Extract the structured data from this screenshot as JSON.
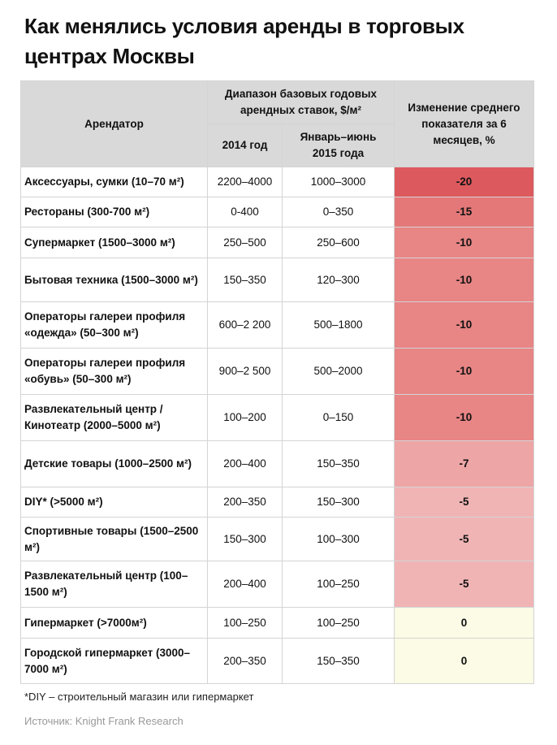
{
  "title": "Как менялись условия аренды в торговых центрах Москвы",
  "table": {
    "headers": {
      "tenant": "Арендатор",
      "range": "Диапазон базовых годовых арендных ставок, $/м²",
      "y2014": "2014 год",
      "y2015": "Январь–июнь 2015 года",
      "change": "Изменение среднего показателя за 6 месяцев, %"
    },
    "rows": [
      {
        "tenant": "Аксессуары, сумки (10–70 м²)",
        "y2014": "2200–4000",
        "y2015": "1000–3000",
        "change": "-20",
        "color": "#dc5a5e"
      },
      {
        "tenant": "Рестораны (300-700 м²)",
        "y2014": "0-400",
        "y2015": "0–350",
        "change": "-15",
        "color": "#e47878"
      },
      {
        "tenant": "Супермаркет (1500–3000 м²)",
        "y2014": "250–500",
        "y2015": "250–600",
        "change": "-10",
        "color": "#e88585"
      },
      {
        "tenant": "Бытовая техника (1500–3000 м²)",
        "y2014": "150–350",
        "y2015": "120–300",
        "change": "-10",
        "color": "#e88585"
      },
      {
        "tenant": "Операторы галереи профиля «одежда» (50–300 м²)",
        "y2014": "600–2 200",
        "y2015": "500–1800",
        "change": "-10",
        "color": "#e88585"
      },
      {
        "tenant": "Операторы галереи профиля «обувь» (50–300 м²)",
        "y2014": "900–2 500",
        "y2015": "500–2000",
        "change": "-10",
        "color": "#e88585"
      },
      {
        "tenant": "Развлекательный центр / Кинотеатр (2000–5000 м²)",
        "y2014": "100–200",
        "y2015": "0–150",
        "change": "-10",
        "color": "#e88585"
      },
      {
        "tenant": "Детские товары (1000–2500 м²)",
        "y2014": "200–400",
        "y2015": "150–350",
        "change": "-7",
        "color": "#eda5a6"
      },
      {
        "tenant": "DIY* (>5000 м²)",
        "y2014": "200–350",
        "y2015": "150–300",
        "change": "-5",
        "color": "#f0b4b5"
      },
      {
        "tenant": "Спортивные товары (1500–2500 м²)",
        "y2014": "150–300",
        "y2015": "100–300",
        "change": "-5",
        "color": "#f0b4b5"
      },
      {
        "tenant": "Развлекательный центр (100–1500 м²)",
        "y2014": "200–400",
        "y2015": "100–250",
        "change": "-5",
        "color": "#f0b4b5"
      },
      {
        "tenant": "Гипермаркет (>7000м²)",
        "y2014": "100–250",
        "y2015": "100–250",
        "change": "0",
        "color": "#fbfbe6"
      },
      {
        "tenant": "Городской гипермаркет (3000–7000 м²)",
        "y2014": "200–350",
        "y2015": "150–350",
        "change": "0",
        "color": "#fbfbe6"
      }
    ]
  },
  "footnote": "*DIY – строительный магазин или гипермаркет",
  "source": "Источник: Knight Frank Research"
}
